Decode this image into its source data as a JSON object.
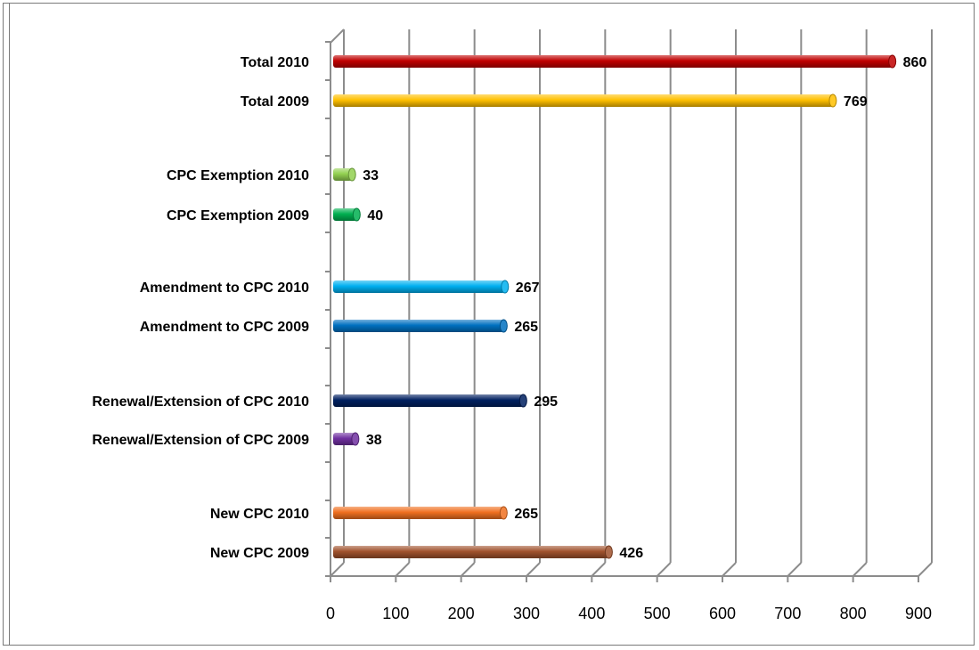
{
  "chart_data": {
    "type": "bar",
    "orientation": "horizontal",
    "categories": [
      "Total 2010",
      "Total 2009",
      "CPC Exemption 2010",
      "CPC Exemption 2009",
      "Amendment to CPC 2010",
      "Amendment to CPC 2009",
      "Renewal/Extension of CPC 2010",
      "Renewal/Extension of CPC 2009",
      "New CPC 2010",
      "New CPC 2009"
    ],
    "values": [
      860,
      769,
      33,
      40,
      267,
      265,
      295,
      38,
      265,
      426
    ],
    "colors": [
      "#c00000",
      "#ffc000",
      "#92d050",
      "#00b050",
      "#00b0f0",
      "#0070c0",
      "#002060",
      "#7030a0",
      "#f07020",
      "#a0522d"
    ],
    "xlim": [
      0,
      900
    ],
    "x_ticks": [
      "0",
      "100",
      "200",
      "300",
      "400",
      "500",
      "600",
      "700",
      "800",
      "900"
    ],
    "grid": true,
    "data_labels": true,
    "legend": "none",
    "title": "",
    "xlabel": "",
    "ylabel": ""
  }
}
